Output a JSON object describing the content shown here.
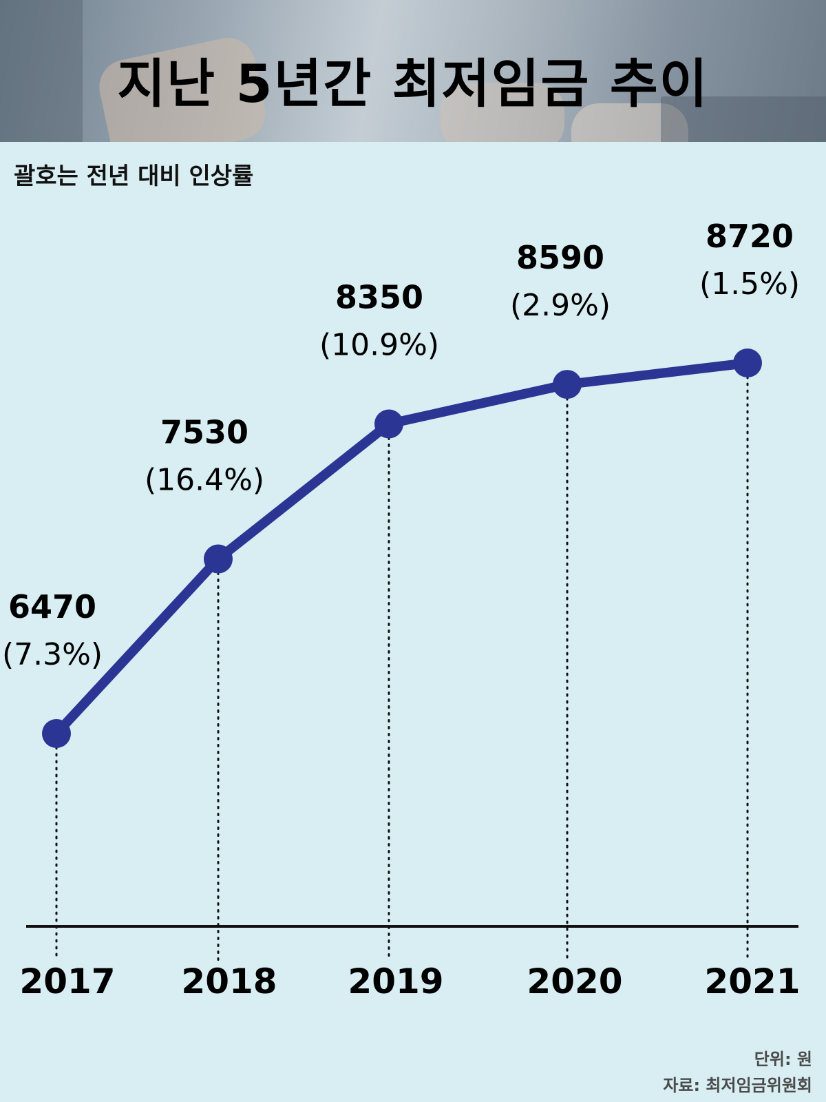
{
  "header": {
    "title": "지난 5년간 최저임금 추이"
  },
  "chart_note": "괄호는 전년 대비 인상률",
  "footer": {
    "unit": "단위: 원",
    "source": "자료: 최저임금위원회"
  },
  "colors": {
    "line": "#2b3594",
    "background": "#d8eef3",
    "axis": "#111111"
  },
  "chart_data": {
    "type": "line",
    "title": "지난 5년간 최저임금 추이",
    "xlabel": "",
    "ylabel": "",
    "categories": [
      "2017",
      "2018",
      "2019",
      "2020",
      "2021"
    ],
    "series": [
      {
        "values": [
          6470,
          7530,
          8350,
          8590,
          8720
        ],
        "value_labels": [
          "6470",
          "7530",
          "8350",
          "8590",
          "8720"
        ],
        "change_labels": [
          "(7.3%)",
          "(16.4%)",
          "(10.9%)",
          "(2.9%)",
          "(1.5%)"
        ]
      }
    ],
    "grid": false,
    "legend": "none"
  }
}
